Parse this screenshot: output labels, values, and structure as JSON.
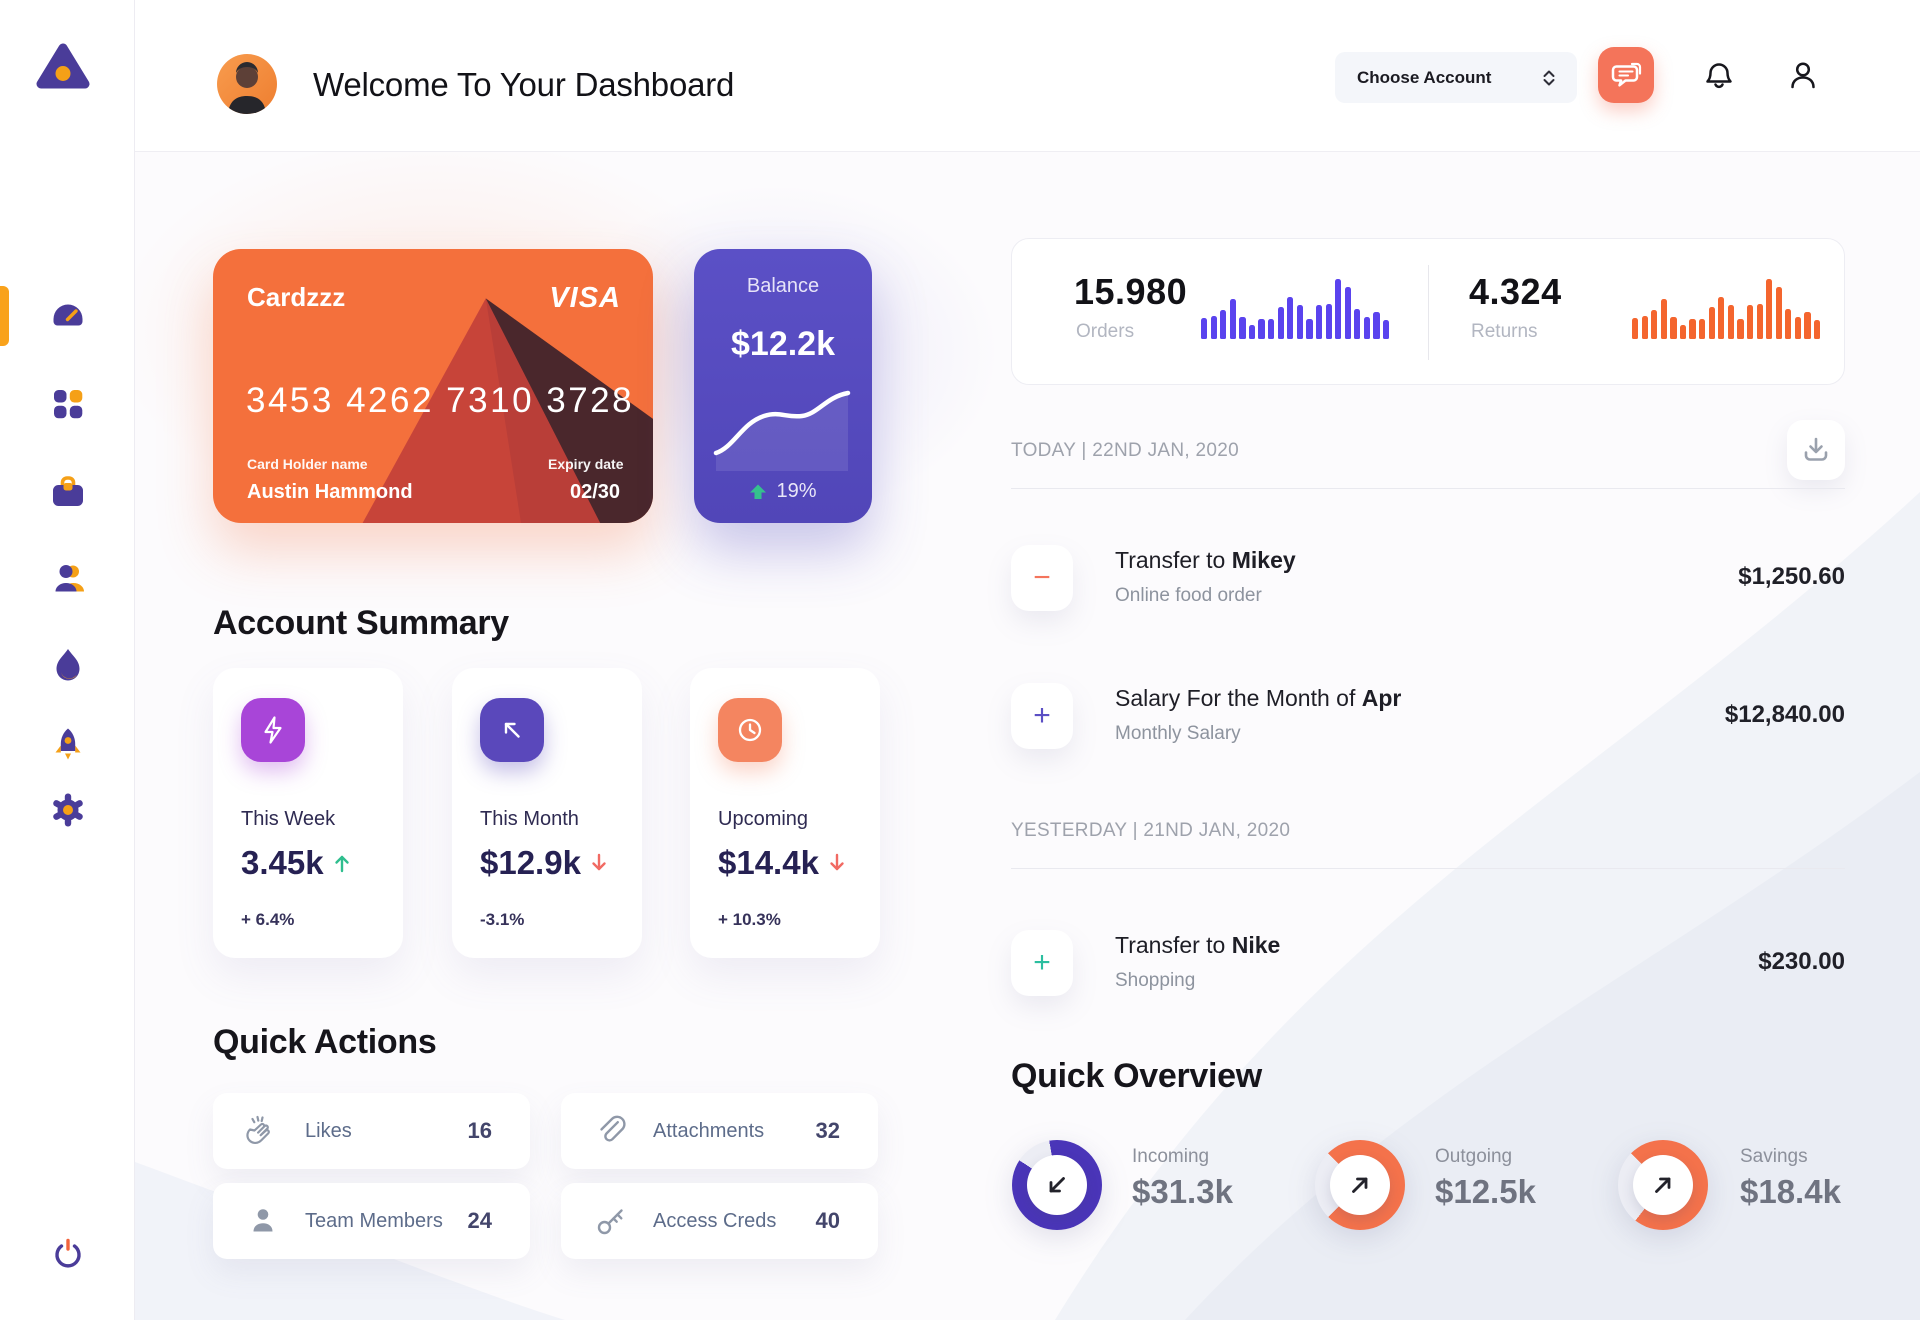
{
  "header": {
    "greeting": "Welcome To Your Dashboard",
    "account_selector_label": "Choose Account"
  },
  "sidebar": {
    "items": [
      {
        "icon": "speedometer-icon",
        "active": true
      },
      {
        "icon": "grid-icon",
        "active": false
      },
      {
        "icon": "briefcase-icon",
        "active": false
      },
      {
        "icon": "people-icon",
        "active": false
      },
      {
        "icon": "flame-icon",
        "active": false
      },
      {
        "icon": "rocket-icon",
        "active": false
      },
      {
        "icon": "gear-icon",
        "active": false
      }
    ]
  },
  "credit_card": {
    "name": "Cardzzz",
    "brand": "VISA",
    "number": "3453 4262 7310 3728",
    "holder_label": "Card Holder name",
    "holder_name": "Austin Hammond",
    "expiry_label": "Expiry date",
    "expiry": "02/30"
  },
  "balance_card": {
    "label": "Balance",
    "value": "$12.2k",
    "change": "19%"
  },
  "account_summary": {
    "heading": "Account Summary",
    "cards": [
      {
        "label": "This Week",
        "value": "3.45k",
        "delta": "+ 6.4%",
        "trend": "up",
        "icon": "lightning-icon",
        "icon_color": "#A845D8"
      },
      {
        "label": "This Month",
        "value": "$12.9k",
        "delta": "-3.1%",
        "trend": "down",
        "icon": "arrow-up-left-icon",
        "icon_color": "#5A48BB"
      },
      {
        "label": "Upcoming",
        "value": "$14.4k",
        "delta": "+ 10.3%",
        "trend": "down",
        "icon": "clock-icon",
        "icon_color": "#F48560"
      }
    ]
  },
  "quick_actions": {
    "heading": "Quick Actions",
    "items": [
      {
        "label": "Likes",
        "count": "16",
        "icon": "clap-icon"
      },
      {
        "label": "Attachments",
        "count": "32",
        "icon": "paperclip-icon"
      },
      {
        "label": "Team Members",
        "count": "24",
        "icon": "member-icon"
      },
      {
        "label": "Access Creds",
        "count": "40",
        "icon": "key-icon"
      }
    ]
  },
  "stats": {
    "orders": {
      "value": "15.980",
      "label": "Orders",
      "color": "#5A43EE",
      "bars": [
        35,
        38,
        48,
        67,
        36,
        23,
        34,
        34,
        53,
        70,
        56,
        33,
        56,
        58,
        100,
        87,
        50,
        36,
        45,
        31
      ]
    },
    "returns": {
      "value": "4.324",
      "label": "Returns",
      "color": "#F4652E",
      "bars": [
        35,
        38,
        48,
        67,
        36,
        23,
        34,
        34,
        53,
        70,
        56,
        33,
        56,
        58,
        100,
        87,
        50,
        36,
        45,
        31
      ]
    }
  },
  "transactions": {
    "today_heading": "TODAY | 22ND JAN, 2020",
    "yesterday_heading": "YESTERDAY | 21ND JAN, 2020",
    "rows": [
      {
        "title_prefix": "Transfer to ",
        "title_bold": "Mikey",
        "subtitle": "Online food order",
        "amount": "$1,250.60",
        "icon_glyph": "−",
        "icon_color": "#F4745C"
      },
      {
        "title_prefix": "Salary For the Month of ",
        "title_bold": "Apr",
        "subtitle": "Monthly Salary",
        "amount": "$12,840.00",
        "icon_glyph": "+",
        "icon_color": "#5B4FC4"
      },
      {
        "title_prefix": "Transfer to ",
        "title_bold": "Nike",
        "subtitle": "Shopping",
        "amount": "$230.00",
        "icon_glyph": "+",
        "icon_color": "#2BBE9F"
      }
    ]
  },
  "quick_overview": {
    "heading": "Quick Overview",
    "items": [
      {
        "label": "Incoming",
        "value": "$31.3k",
        "pct": 87,
        "from": 350,
        "color": "#4A35B8",
        "arrow": "arrow-down-left-icon"
      },
      {
        "label": "Outgoing",
        "value": "$12.5k",
        "pct": 75,
        "from": 315,
        "color": "#F4724B",
        "arrow": "arrow-up-right-icon"
      },
      {
        "label": "Savings",
        "value": "$18.4k",
        "pct": 73,
        "from": 315,
        "color": "#F4724B",
        "arrow": "arrow-up-right-icon"
      }
    ]
  },
  "colors": {
    "accent_orange": "#F4703C",
    "accent_purple": "#4A3C99",
    "accent_violet": "#5A43EE",
    "accent_amber": "#F5A017",
    "positive_green": "#2FBE8E",
    "negative_red": "#F16A63"
  },
  "chart_data": [
    {
      "type": "bar",
      "title": "Orders mini chart",
      "values": [
        35,
        38,
        48,
        67,
        36,
        23,
        34,
        34,
        53,
        70,
        56,
        33,
        56,
        58,
        100,
        87,
        50,
        36,
        45,
        31
      ],
      "color": "#5A43EE"
    },
    {
      "type": "bar",
      "title": "Returns mini chart",
      "values": [
        35,
        38,
        48,
        67,
        36,
        23,
        34,
        34,
        53,
        70,
        56,
        33,
        56,
        58,
        100,
        87,
        50,
        36,
        45,
        31
      ],
      "color": "#F4652E"
    },
    {
      "type": "line",
      "title": "Balance trend",
      "annotation": "19% up",
      "shape": "smooth rising s-curve"
    },
    {
      "type": "donut",
      "title": "Quick Overview",
      "items": [
        {
          "label": "Incoming",
          "value": "$31.3k",
          "pct": 87
        },
        {
          "label": "Outgoing",
          "value": "$12.5k",
          "pct": 75
        },
        {
          "label": "Savings",
          "value": "$18.4k",
          "pct": 73
        }
      ]
    }
  ]
}
